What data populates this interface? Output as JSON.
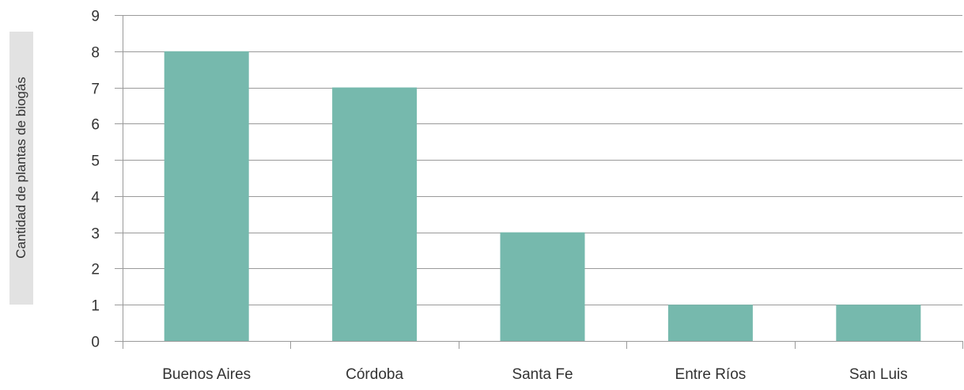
{
  "chart_data": {
    "type": "bar",
    "categories": [
      "Buenos Aires",
      "Córdoba",
      "Santa Fe",
      "Entre Ríos",
      "San Luis"
    ],
    "values": [
      8,
      7,
      3,
      1,
      1
    ],
    "title": "",
    "xlabel": "",
    "ylabel": "Cantidad de plantas de biogás",
    "ylim": [
      0,
      9
    ],
    "yticks": [
      "0",
      "1",
      "2",
      "3",
      "4",
      "5",
      "6",
      "7",
      "8",
      "9"
    ],
    "grid": true,
    "legend": "none",
    "colors": {
      "bar": "#76b9ad",
      "grid": "#9a9a9a",
      "axis": "#9a9a9a",
      "text": "#333333",
      "ylabel_bg": "#e2e2e2"
    }
  }
}
